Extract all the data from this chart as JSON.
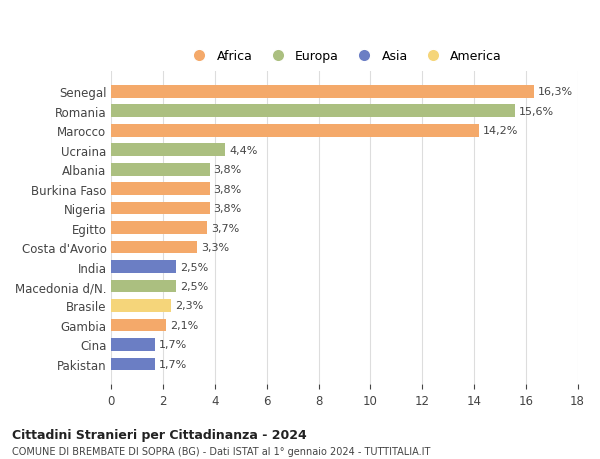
{
  "countries": [
    "Senegal",
    "Romania",
    "Marocco",
    "Ucraina",
    "Albania",
    "Burkina Faso",
    "Nigeria",
    "Egitto",
    "Costa d'Avorio",
    "India",
    "Macedonia d/N.",
    "Brasile",
    "Gambia",
    "Cina",
    "Pakistan"
  ],
  "values": [
    16.3,
    15.6,
    14.2,
    4.4,
    3.8,
    3.8,
    3.8,
    3.7,
    3.3,
    2.5,
    2.5,
    2.3,
    2.1,
    1.7,
    1.7
  ],
  "labels": [
    "16,3%",
    "15,6%",
    "14,2%",
    "4,4%",
    "3,8%",
    "3,8%",
    "3,8%",
    "3,7%",
    "3,3%",
    "2,5%",
    "2,5%",
    "2,3%",
    "2,1%",
    "1,7%",
    "1,7%"
  ],
  "continents": [
    "Africa",
    "Europa",
    "Africa",
    "Europa",
    "Europa",
    "Africa",
    "Africa",
    "Africa",
    "Africa",
    "Asia",
    "Europa",
    "America",
    "Africa",
    "Asia",
    "Asia"
  ],
  "colors": {
    "Africa": "#F4A96A",
    "Europa": "#ABBF80",
    "Asia": "#6B7EC4",
    "America": "#F5D57A"
  },
  "legend_order": [
    "Africa",
    "Europa",
    "Asia",
    "America"
  ],
  "legend_colors": [
    "#F4A96A",
    "#ABBF80",
    "#6B7EC4",
    "#F5D57A"
  ],
  "xlim": [
    0,
    18
  ],
  "xticks": [
    0,
    2,
    4,
    6,
    8,
    10,
    12,
    14,
    16,
    18
  ],
  "title": "Cittadini Stranieri per Cittadinanza - 2024",
  "subtitle": "COMUNE DI BREMBATE DI SOPRA (BG) - Dati ISTAT al 1° gennaio 2024 - TUTTITALIA.IT",
  "bg_color": "#ffffff",
  "grid_color": "#dddddd"
}
